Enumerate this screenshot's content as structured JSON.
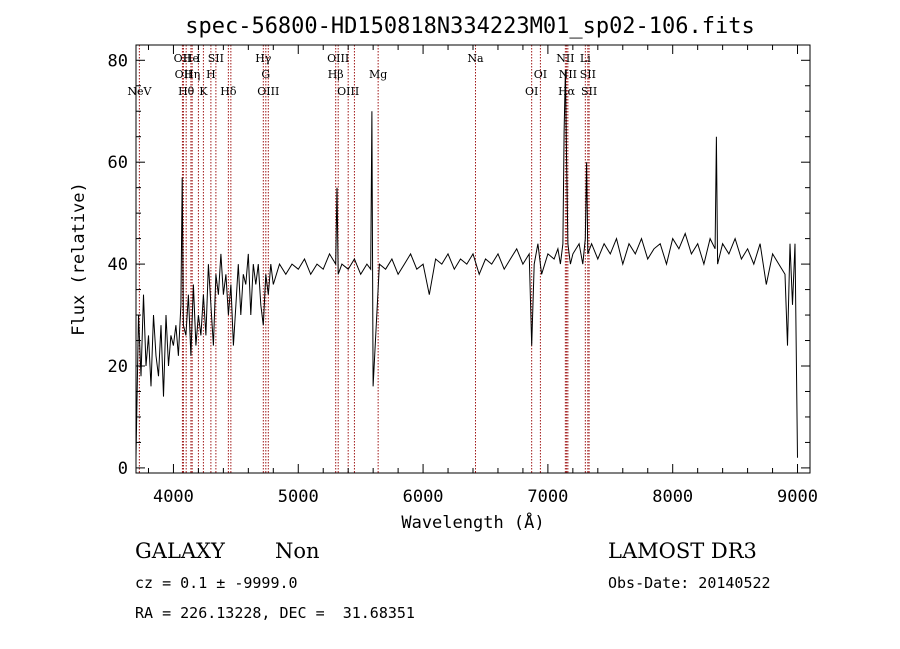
{
  "chart_data": {
    "type": "line",
    "title": "spec-56800-HD150818N334223M01_sp02-106.fits",
    "xlabel": "Wavelength (Å)",
    "ylabel": "Flux (relative)",
    "xlim": [
      3700,
      9100
    ],
    "ylim": [
      -1,
      83
    ],
    "xticks": [
      4000,
      5000,
      6000,
      7000,
      8000,
      9000
    ],
    "yticks": [
      0,
      20,
      40,
      60,
      80
    ],
    "series": [
      {
        "name": "spectrum",
        "x": [
          3700,
          3720,
          3740,
          3760,
          3780,
          3800,
          3820,
          3840,
          3860,
          3880,
          3900,
          3920,
          3940,
          3960,
          3980,
          4000,
          4020,
          4040,
          4060,
          4070,
          4080,
          4100,
          4120,
          4140,
          4160,
          4180,
          4200,
          4220,
          4240,
          4260,
          4280,
          4300,
          4320,
          4340,
          4360,
          4380,
          4400,
          4420,
          4440,
          4460,
          4480,
          4500,
          4520,
          4540,
          4560,
          4580,
          4600,
          4620,
          4640,
          4660,
          4680,
          4700,
          4720,
          4740,
          4760,
          4780,
          4800,
          4850,
          4900,
          4950,
          5000,
          5050,
          5100,
          5150,
          5200,
          5250,
          5300,
          5310,
          5320,
          5350,
          5400,
          5450,
          5500,
          5550,
          5580,
          5590,
          5600,
          5650,
          5700,
          5750,
          5800,
          5850,
          5900,
          5950,
          6000,
          6050,
          6100,
          6150,
          6200,
          6250,
          6300,
          6350,
          6400,
          6450,
          6500,
          6550,
          6600,
          6650,
          6700,
          6750,
          6800,
          6850,
          6870,
          6890,
          6920,
          6950,
          7000,
          7050,
          7080,
          7100,
          7120,
          7130,
          7140,
          7150,
          7160,
          7180,
          7200,
          7250,
          7280,
          7300,
          7310,
          7320,
          7350,
          7400,
          7450,
          7500,
          7550,
          7600,
          7650,
          7700,
          7750,
          7800,
          7850,
          7900,
          7950,
          8000,
          8050,
          8100,
          8150,
          8200,
          8250,
          8300,
          8340,
          8350,
          8360,
          8400,
          8450,
          8500,
          8550,
          8600,
          8650,
          8700,
          8750,
          8800,
          8850,
          8900,
          8920,
          8940,
          8960,
          8980,
          9000
        ],
        "y": [
          2,
          30,
          18,
          34,
          20,
          26,
          16,
          30,
          22,
          18,
          28,
          14,
          30,
          20,
          26,
          24,
          28,
          22,
          32,
          57,
          28,
          26,
          34,
          22,
          36,
          24,
          30,
          26,
          34,
          26,
          40,
          32,
          24,
          38,
          34,
          42,
          34,
          38,
          30,
          36,
          24,
          32,
          40,
          30,
          38,
          36,
          42,
          30,
          40,
          36,
          40,
          32,
          28,
          38,
          34,
          40,
          36,
          40,
          38,
          40,
          39,
          41,
          38,
          40,
          39,
          42,
          40,
          55,
          38,
          40,
          39,
          41,
          38,
          40,
          39,
          70,
          16,
          40,
          39,
          41,
          38,
          40,
          42,
          39,
          40,
          34,
          41,
          40,
          42,
          39,
          41,
          40,
          42,
          38,
          41,
          40,
          42,
          39,
          41,
          43,
          40,
          42,
          24,
          40,
          44,
          38,
          42,
          41,
          43,
          40,
          44,
          66,
          78,
          60,
          44,
          40,
          42,
          44,
          40,
          45,
          60,
          42,
          44,
          41,
          44,
          42,
          45,
          40,
          44,
          42,
          45,
          41,
          43,
          44,
          40,
          45,
          43,
          46,
          42,
          44,
          40,
          45,
          43,
          65,
          40,
          44,
          42,
          45,
          41,
          43,
          40,
          44,
          36,
          42,
          40,
          38,
          24,
          44,
          32,
          44,
          2
        ]
      }
    ],
    "lines": [
      {
        "wave": 3727,
        "label": "NeV",
        "row": 3
      },
      {
        "wave": 4072,
        "label": "OII",
        "row": 1
      },
      {
        "wave": 4080,
        "label": "OII",
        "row": 2
      },
      {
        "wave": 4102,
        "label": "Hθ",
        "row": 3
      },
      {
        "wave": 4140,
        "label": "He",
        "row": 1
      },
      {
        "wave": 4150,
        "label": "Hη",
        "row": 2
      },
      {
        "wave": 4200,
        "label": "I",
        "row": 1
      },
      {
        "wave": 4240,
        "label": "K",
        "row": 3
      },
      {
        "wave": 4300,
        "label": "H",
        "row": 2
      },
      {
        "wave": 4340,
        "label": "SII",
        "row": 1
      },
      {
        "wave": 4440,
        "label": "Hδ",
        "row": 3
      },
      {
        "wave": 4460,
        "label": "",
        "row": 0
      },
      {
        "wave": 4720,
        "label": "Hγ",
        "row": 1
      },
      {
        "wave": 4740,
        "label": "G",
        "row": 2
      },
      {
        "wave": 4760,
        "label": "OIII",
        "row": 3
      },
      {
        "wave": 5300,
        "label": "Hβ",
        "row": 2
      },
      {
        "wave": 5320,
        "label": "OIII",
        "row": 1
      },
      {
        "wave": 5400,
        "label": "OIII",
        "row": 3
      },
      {
        "wave": 5450,
        "label": "",
        "row": 0
      },
      {
        "wave": 5640,
        "label": "Mg",
        "row": 2
      },
      {
        "wave": 6420,
        "label": "Na",
        "row": 1
      },
      {
        "wave": 6870,
        "label": "OI",
        "row": 3
      },
      {
        "wave": 6940,
        "label": "OI",
        "row": 2
      },
      {
        "wave": 7140,
        "label": "NII",
        "row": 1
      },
      {
        "wave": 7150,
        "label": "Hα",
        "row": 3
      },
      {
        "wave": 7160,
        "label": "NII",
        "row": 2
      },
      {
        "wave": 7300,
        "label": "Li",
        "row": 1
      },
      {
        "wave": 7320,
        "label": "SII",
        "row": 2
      },
      {
        "wave": 7330,
        "label": "SII",
        "row": 3
      }
    ],
    "line_color": "#a01818"
  },
  "info": {
    "class": "GALAXY",
    "subclass": "Non",
    "survey": "LAMOST DR3",
    "cz": "cz = 0.1 ± -9999.0",
    "obs_date": "Obs-Date: 20140522",
    "coords": "RA = 226.13228, DEC =  31.68351"
  }
}
